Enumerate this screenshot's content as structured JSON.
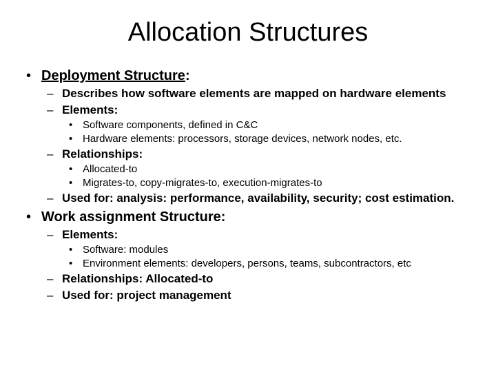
{
  "title": "Allocation Structures",
  "bullets": [
    {
      "label": "Deployment Structure",
      "underline": true,
      "colon": ":",
      "children": [
        {
          "label": "Describes how software elements are mapped on hardware elements"
        },
        {
          "label": "Elements:",
          "children": [
            {
              "label": "Software components, defined in C&C"
            },
            {
              "label": "Hardware elements: processors, storage devices, network nodes, etc."
            }
          ]
        },
        {
          "label": "Relationships:",
          "children": [
            {
              "label": "Allocated-to"
            },
            {
              "label": "Migrates-to, copy-migrates-to, execution-migrates-to"
            }
          ]
        },
        {
          "label": "Used for: analysis: performance, availability, security; cost estimation."
        }
      ]
    },
    {
      "label": "Work assignment Structure:",
      "children": [
        {
          "label": "Elements:",
          "children": [
            {
              "label": "Software:  modules"
            },
            {
              "label": "Environment elements:  developers, persons, teams, subcontractors, etc"
            }
          ]
        },
        {
          "label": "Relationships: Allocated-to"
        },
        {
          "label": "Used for: project management"
        }
      ]
    }
  ]
}
